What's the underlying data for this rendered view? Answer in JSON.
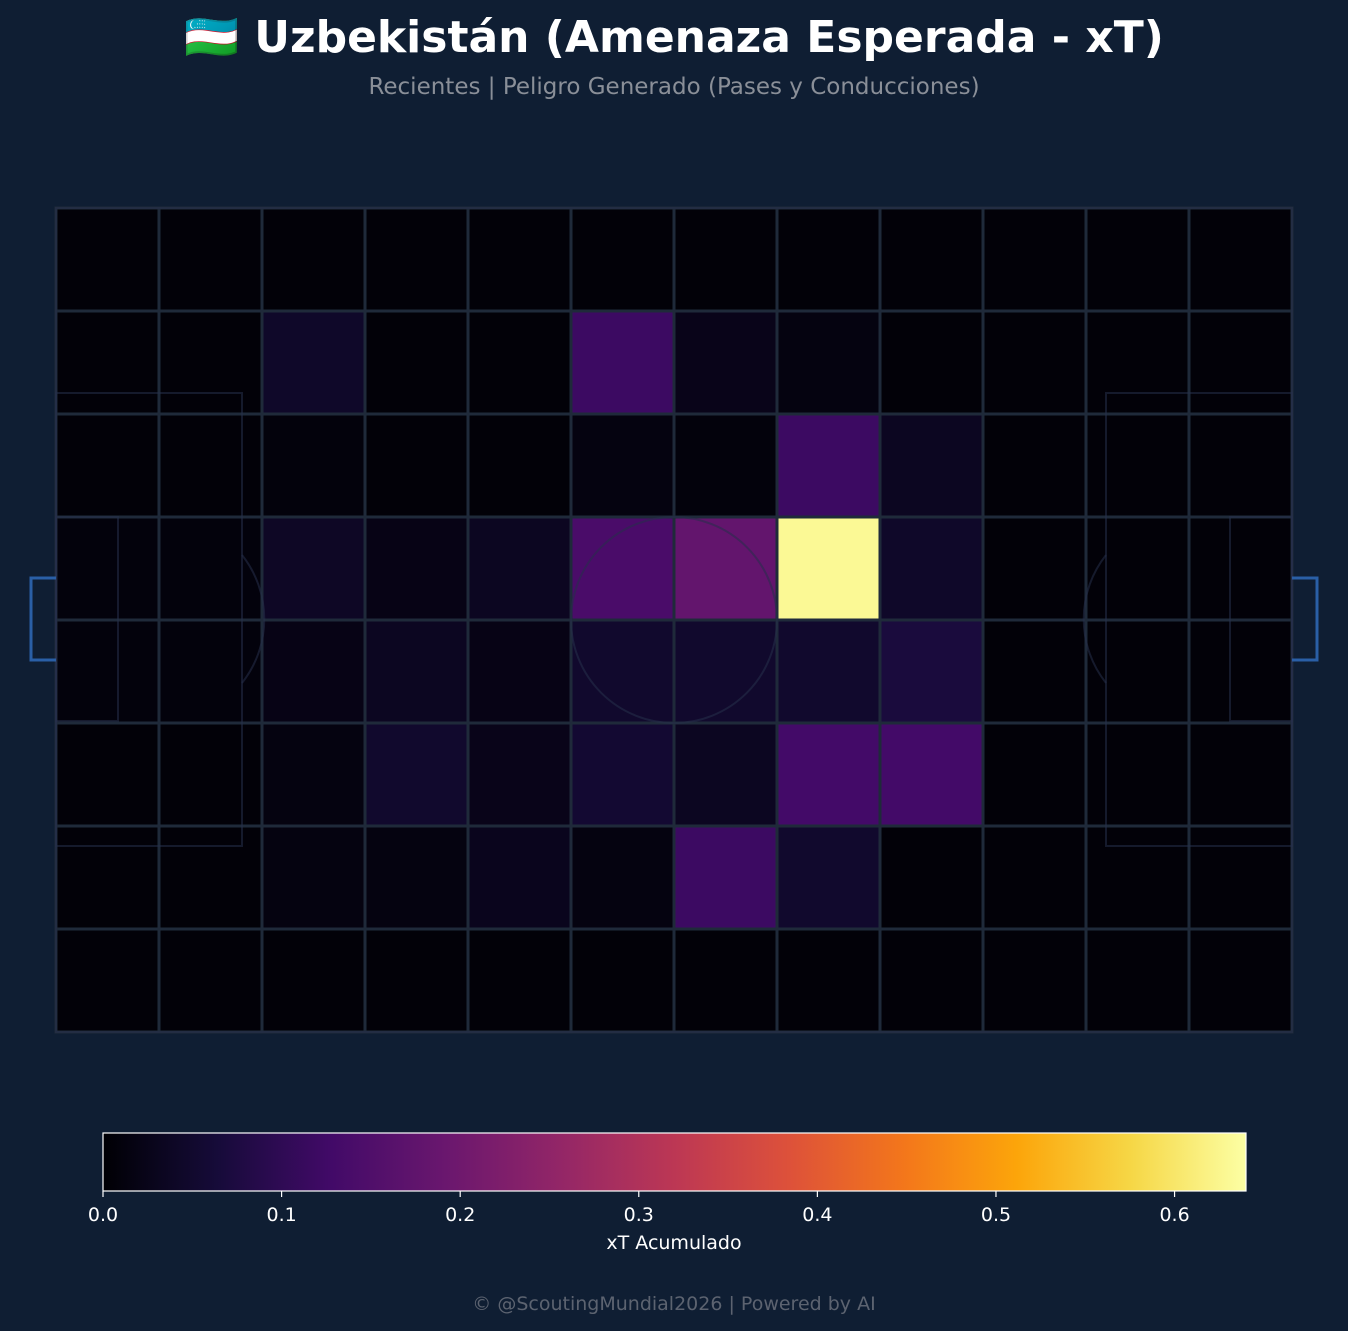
{
  "header": {
    "title": "🇺🇿 Uzbekistán (Amenaza Esperada - xT)",
    "subtitle": "Recientes | Peligro Generado (Pases y Conducciones)"
  },
  "colors": {
    "background": "#0f1e33",
    "grid_line": "#1f2a3a",
    "goal": "#2a5fa6",
    "colormap": "inferno"
  },
  "chart_data": {
    "type": "heatmap",
    "title": "🇺🇿 Uzbekistán (Amenaza Esperada - xT)",
    "subtitle": "Recientes | Peligro Generado (Pases y Conducciones)",
    "columns": 12,
    "rows": 8,
    "values": [
      [
        0.005,
        0.005,
        0.005,
        0.005,
        0.005,
        0.005,
        0.005,
        0.005,
        0.005,
        0.005,
        0.005,
        0.005
      ],
      [
        0.005,
        0.005,
        0.045,
        0.005,
        0.005,
        0.12,
        0.025,
        0.015,
        0.005,
        0.005,
        0.005,
        0.005
      ],
      [
        0.005,
        0.005,
        0.01,
        0.005,
        0.005,
        0.015,
        0.01,
        0.12,
        0.035,
        0.005,
        0.005,
        0.005
      ],
      [
        0.01,
        0.01,
        0.04,
        0.02,
        0.035,
        0.14,
        0.18,
        0.63,
        0.045,
        0.005,
        0.005,
        0.005
      ],
      [
        0.01,
        0.01,
        0.02,
        0.035,
        0.02,
        0.05,
        0.05,
        0.05,
        0.07,
        0.005,
        0.005,
        0.005
      ],
      [
        0.005,
        0.005,
        0.015,
        0.05,
        0.025,
        0.055,
        0.035,
        0.13,
        0.13,
        0.005,
        0.005,
        0.005
      ],
      [
        0.005,
        0.005,
        0.015,
        0.015,
        0.03,
        0.015,
        0.12,
        0.05,
        0.005,
        0.005,
        0.005,
        0.005
      ],
      [
        0.005,
        0.005,
        0.005,
        0.005,
        0.005,
        0.005,
        0.005,
        0.005,
        0.005,
        0.005,
        0.005,
        0.005
      ]
    ],
    "colorbar": {
      "label": "xT Acumulado",
      "range": [
        0,
        0.64
      ],
      "ticks": [
        "0.0",
        "0.1",
        "0.2",
        "0.3",
        "0.4",
        "0.5",
        "0.6"
      ],
      "tick_values": [
        0,
        0.1,
        0.2,
        0.3,
        0.4,
        0.5,
        0.6
      ]
    }
  },
  "footer": "© @ScoutingMundial2026 | Powered by AI"
}
